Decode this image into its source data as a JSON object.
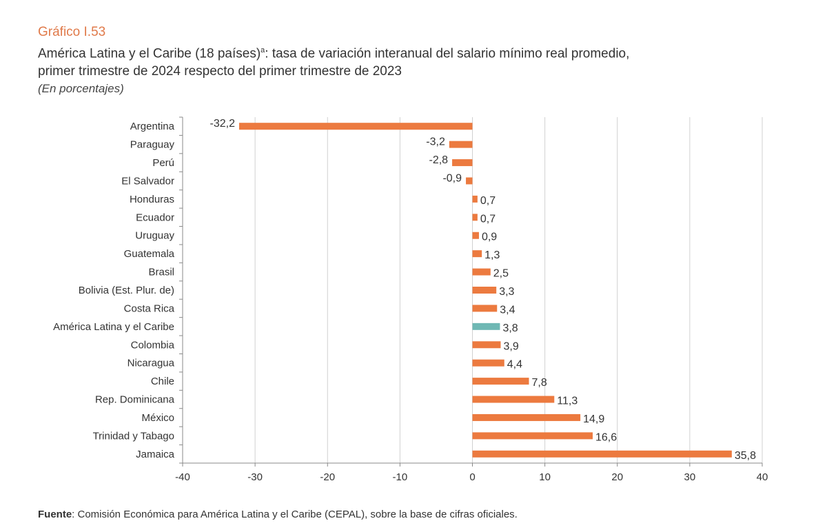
{
  "header": {
    "number": "Gráfico I.53",
    "title_line1": "América Latina y el Caribe (18 países)",
    "superscript": "a",
    "title_line1_rest": ": tasa de variación interanual del salario mínimo real promedio,",
    "title_line2": "primer trimestre de 2024 respecto del primer trimestre de 2023",
    "units": "(En porcentajes)"
  },
  "chart_data": {
    "type": "bar",
    "orientation": "horizontal",
    "categories": [
      "Argentina",
      "Paraguay",
      "Perú",
      "El Salvador",
      "Honduras",
      "Ecuador",
      "Uruguay",
      "Guatemala",
      "Brasil",
      "Bolivia (Est. Plur. de)",
      "Costa Rica",
      "América Latina y el Caribe",
      "Colombia",
      "Nicaragua",
      "Chile",
      "Rep. Dominicana",
      "México",
      "Trinidad y Tabago",
      "Jamaica"
    ],
    "values": [
      -32.2,
      -3.2,
      -2.8,
      -0.9,
      0.7,
      0.7,
      0.9,
      1.3,
      2.5,
      3.3,
      3.4,
      3.8,
      3.9,
      4.4,
      7.8,
      11.3,
      14.9,
      16.6,
      35.8
    ],
    "labels": [
      "-32,2",
      "-3,2",
      "-2,8",
      "-0,9",
      "0,7",
      "0,7",
      "0,9",
      "1,3",
      "2,5",
      "3,3",
      "3,4",
      "3,8",
      "3,9",
      "4,4",
      "7,8",
      "11,3",
      "14,9",
      "16,6",
      "35,8"
    ],
    "highlight": "América Latina y el Caribe",
    "xlim": [
      -40,
      40
    ],
    "xticks": [
      -40,
      -30,
      -20,
      -10,
      0,
      10,
      20,
      30,
      40
    ],
    "grid": true,
    "colors": {
      "bar": "#ec7a3f",
      "highlight": "#6fb8b4",
      "grid": "#d0d0d0"
    }
  },
  "source": {
    "label": "Fuente",
    "text": ":  Comisión Económica para América Latina y el Caribe (CEPAL), sobre la base de cifras oficiales."
  }
}
